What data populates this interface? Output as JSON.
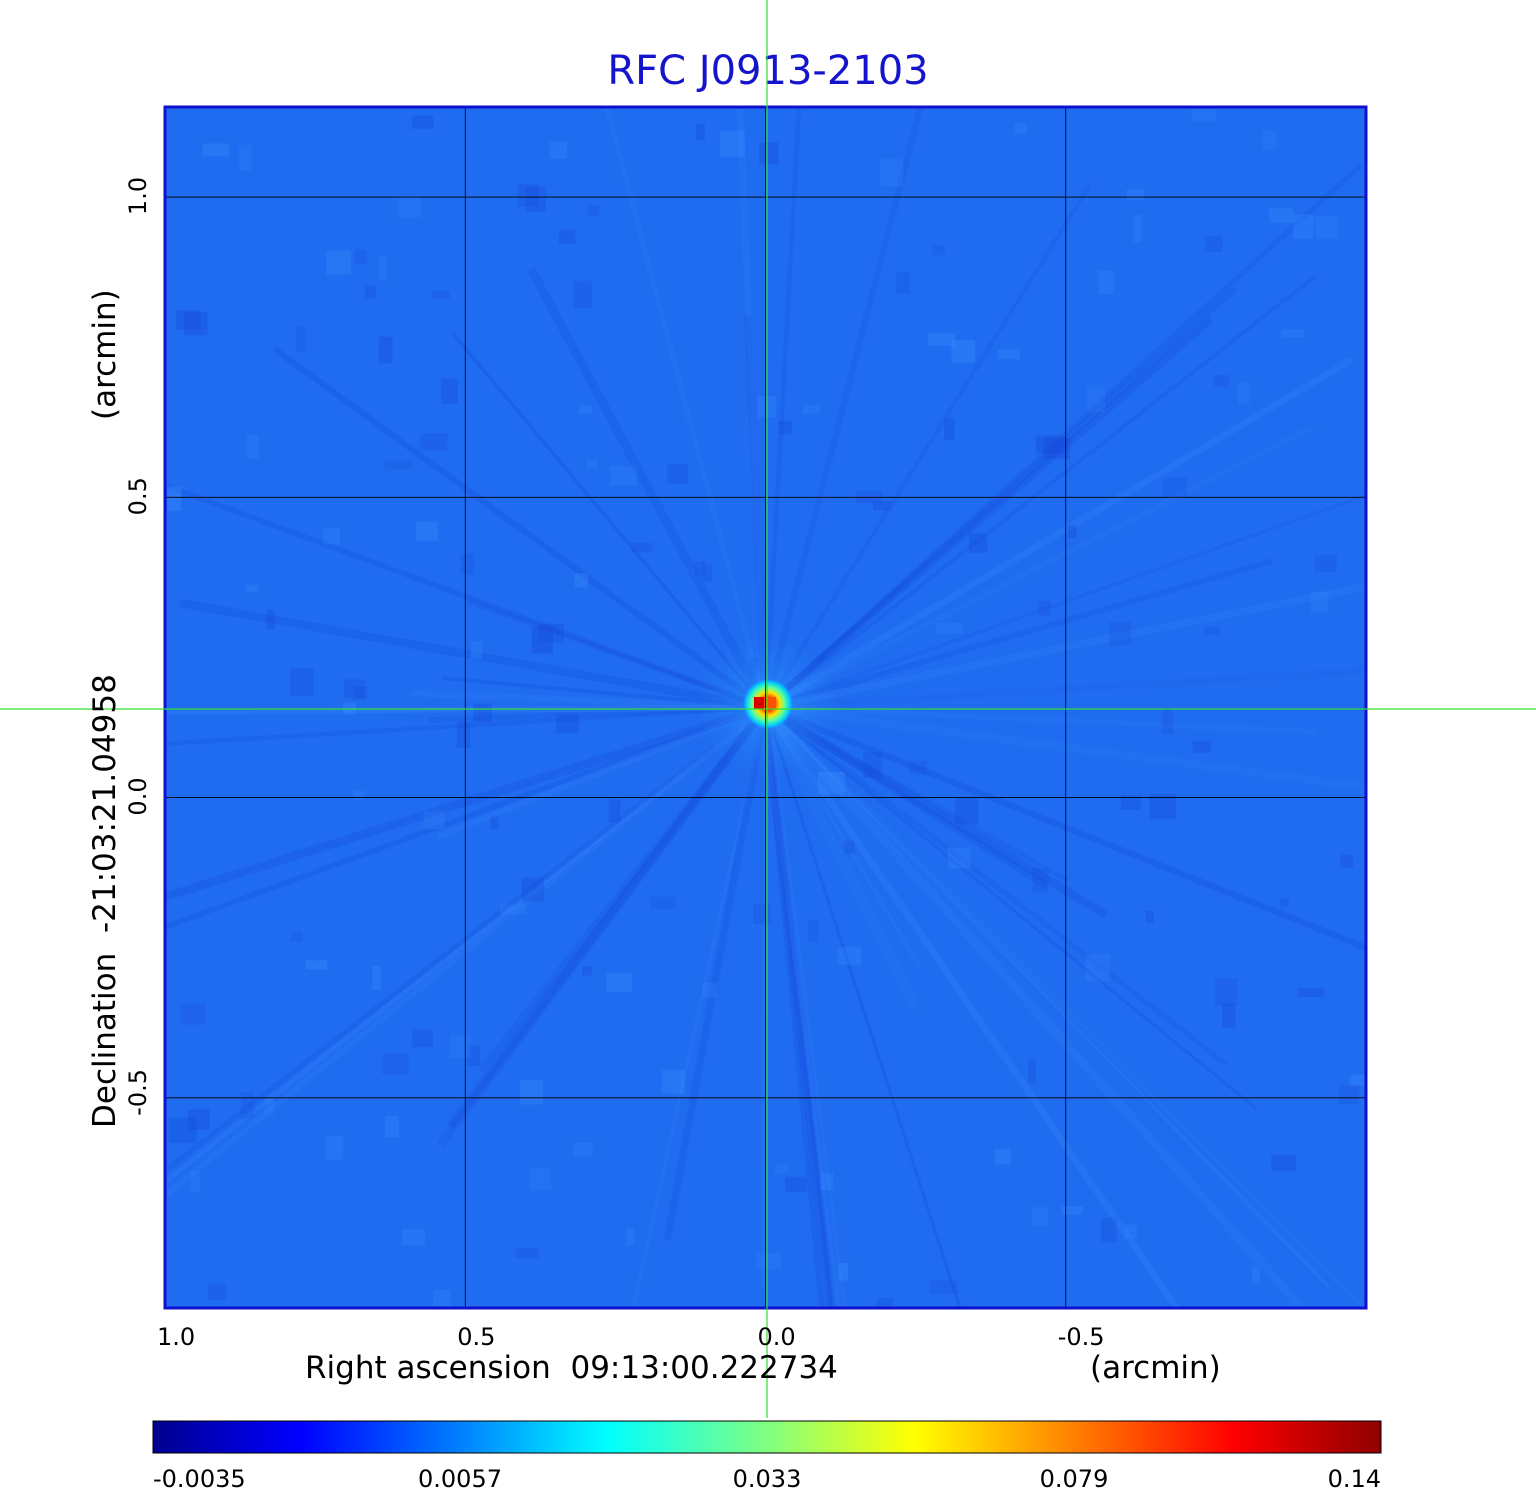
{
  "chart_data": {
    "type": "heatmap",
    "title": "RFC J0913-2103",
    "xlabel": "Right ascension  09:13:00.222734",
    "xunit": "(arcmin)",
    "ylabel": "Declination  -21:03:21.04958",
    "yunit": "(arcmin)",
    "xlim": [
      1.0,
      -1.0
    ],
    "ylim": [
      -0.85,
      1.15
    ],
    "xticks": [
      1.0,
      0.5,
      0.0,
      -0.5
    ],
    "xtick_labels": [
      "1.0",
      "0.5",
      "0.0",
      "-0.5"
    ],
    "yticks": [
      -0.5,
      0.0,
      0.5,
      1.0
    ],
    "ytick_labels": [
      "-0.5",
      "0.0",
      "0.5",
      "1.0"
    ],
    "grid": true,
    "crosshair": {
      "x": 0.0,
      "y": 0.15
    },
    "source": {
      "x": 0.0,
      "y": 0.15,
      "peak": 0.14
    },
    "colorbar": {
      "tick_labels": [
        "-0.0035",
        "0.0057",
        "0.033",
        "0.079",
        "0.14"
      ],
      "colors": [
        "#00008f",
        "#0000ff",
        "#0080ff",
        "#00ffff",
        "#80ff80",
        "#ffff00",
        "#ff8000",
        "#ff0000",
        "#8f0000"
      ]
    },
    "background_color": "#1f6cf0"
  }
}
